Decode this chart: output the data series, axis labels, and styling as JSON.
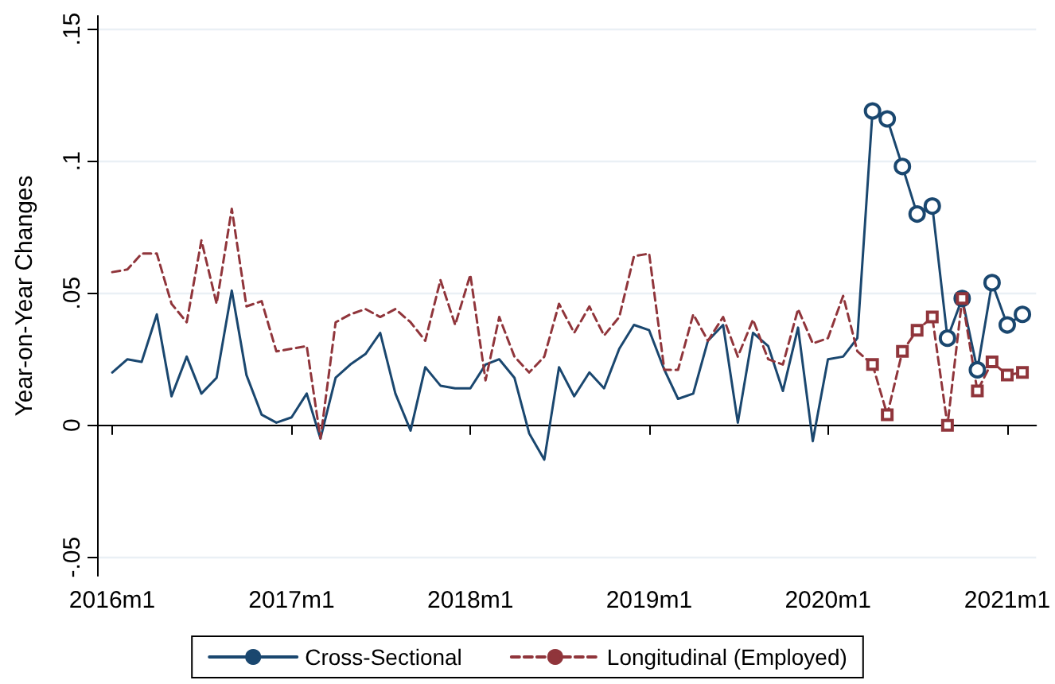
{
  "chart_data": {
    "type": "line",
    "ylabel": "Year-on-Year Changes",
    "x": [
      "2016-01",
      "2016-02",
      "2016-03",
      "2016-04",
      "2016-05",
      "2016-06",
      "2016-07",
      "2016-08",
      "2016-09",
      "2016-10",
      "2016-11",
      "2016-12",
      "2017-01",
      "2017-02",
      "2017-03",
      "2017-04",
      "2017-05",
      "2017-06",
      "2017-07",
      "2017-08",
      "2017-09",
      "2017-10",
      "2017-11",
      "2017-12",
      "2018-01",
      "2018-02",
      "2018-03",
      "2018-04",
      "2018-05",
      "2018-06",
      "2018-07",
      "2018-08",
      "2018-09",
      "2018-10",
      "2018-11",
      "2018-12",
      "2019-01",
      "2019-02",
      "2019-03",
      "2019-04",
      "2019-05",
      "2019-06",
      "2019-07",
      "2019-08",
      "2019-09",
      "2019-10",
      "2019-11",
      "2019-12",
      "2020-01",
      "2020-02",
      "2020-03",
      "2020-04",
      "2020-05",
      "2020-06",
      "2020-07",
      "2020-08",
      "2020-09",
      "2020-10",
      "2020-11",
      "2020-12",
      "2021-01",
      "2021-02"
    ],
    "series": [
      {
        "name": "Cross-Sectional",
        "color": "#1a476f",
        "line_style": "solid",
        "values": [
          0.02,
          0.025,
          0.024,
          0.042,
          0.011,
          0.026,
          0.012,
          0.018,
          0.051,
          0.019,
          0.004,
          0.001,
          0.003,
          0.012,
          -0.005,
          0.018,
          0.023,
          0.027,
          0.035,
          0.012,
          -0.002,
          0.022,
          0.015,
          0.014,
          0.014,
          0.023,
          0.025,
          0.018,
          -0.003,
          -0.013,
          0.022,
          0.011,
          0.02,
          0.014,
          0.029,
          0.038,
          0.036,
          0.021,
          0.01,
          0.012,
          0.032,
          0.038,
          0.001,
          0.035,
          0.03,
          0.013,
          0.037,
          -0.006,
          0.025,
          0.026,
          0.033,
          0.119,
          null,
          null,
          null,
          null,
          null,
          null,
          null,
          null,
          null,
          null
        ]
      },
      {
        "color": "#1a476f",
        "line_style": "solid",
        "marker": "circle",
        "values": [
          null,
          null,
          null,
          null,
          null,
          null,
          null,
          null,
          null,
          null,
          null,
          null,
          null,
          null,
          null,
          null,
          null,
          null,
          null,
          null,
          null,
          null,
          null,
          null,
          null,
          null,
          null,
          null,
          null,
          null,
          null,
          null,
          null,
          null,
          null,
          null,
          null,
          null,
          null,
          null,
          null,
          null,
          null,
          null,
          null,
          null,
          null,
          null,
          null,
          null,
          null,
          0.119,
          0.116,
          0.098,
          0.08,
          0.083,
          0.033,
          0.048,
          0.021,
          0.054,
          0.038,
          0.042
        ]
      },
      {
        "name": "Longitudinal (Employed)",
        "color": "#90353b",
        "line_style": "dashed",
        "values": [
          0.058,
          0.059,
          0.065,
          0.065,
          0.046,
          0.039,
          0.07,
          0.046,
          0.082,
          0.045,
          0.047,
          0.028,
          0.029,
          0.03,
          -0.005,
          0.039,
          0.042,
          0.044,
          0.041,
          0.044,
          0.039,
          0.032,
          0.055,
          0.038,
          0.057,
          0.017,
          0.041,
          0.026,
          0.02,
          0.026,
          0.046,
          0.035,
          0.045,
          0.034,
          0.041,
          0.064,
          0.065,
          0.021,
          0.021,
          0.042,
          0.032,
          0.041,
          0.026,
          0.04,
          0.025,
          0.023,
          0.044,
          0.031,
          0.033,
          0.049,
          0.028,
          0.023,
          null,
          null,
          null,
          null,
          null,
          null,
          null,
          null,
          null,
          null
        ]
      },
      {
        "color": "#90353b",
        "line_style": "dashed",
        "marker": "square",
        "values": [
          null,
          null,
          null,
          null,
          null,
          null,
          null,
          null,
          null,
          null,
          null,
          null,
          null,
          null,
          null,
          null,
          null,
          null,
          null,
          null,
          null,
          null,
          null,
          null,
          null,
          null,
          null,
          null,
          null,
          null,
          null,
          null,
          null,
          null,
          null,
          null,
          null,
          null,
          null,
          null,
          null,
          null,
          null,
          null,
          null,
          null,
          null,
          null,
          null,
          null,
          null,
          0.023,
          0.004,
          0.028,
          0.036,
          0.041,
          0.0,
          0.048,
          0.013,
          0.024,
          0.019,
          0.02
        ]
      }
    ],
    "xlim": [
      "2015-12",
      "2021-03"
    ],
    "xticks": [
      {
        "value": "2016-01",
        "label": "2016m1"
      },
      {
        "value": "2017-01",
        "label": "2017m1"
      },
      {
        "value": "2018-01",
        "label": "2018m1"
      },
      {
        "value": "2019-01",
        "label": "2019m1"
      },
      {
        "value": "2020-01",
        "label": "2020m1"
      },
      {
        "value": "2021-01",
        "label": "2021m1"
      }
    ],
    "ylim": [
      -0.057,
      0.155
    ],
    "yticks": [
      {
        "value": -0.05,
        "label": "-.05"
      },
      {
        "value": 0,
        "label": "0"
      },
      {
        "value": 0.05,
        "label": ".05"
      },
      {
        "value": 0.1,
        "label": ".1"
      },
      {
        "value": 0.15,
        "label": ".15"
      }
    ],
    "grid": "y",
    "legend": "bottom"
  }
}
